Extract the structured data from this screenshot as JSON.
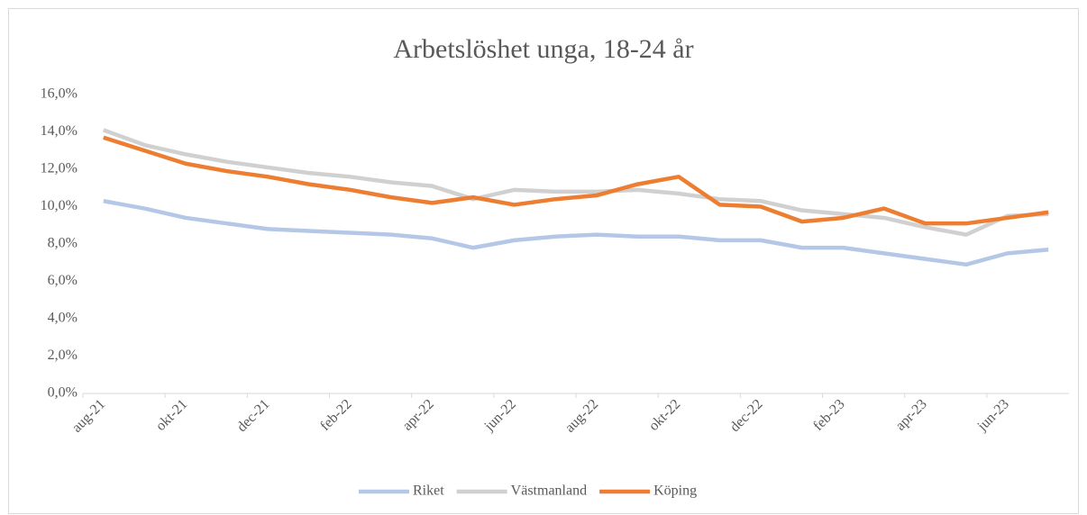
{
  "chart_data": {
    "type": "line",
    "title": "Arbetslöshet unga, 18-24 år",
    "categories": [
      "aug-21",
      null,
      "okt-21",
      null,
      "dec-21",
      null,
      "feb-22",
      null,
      "apr-22",
      null,
      "jun-22",
      null,
      "aug-22",
      null,
      "okt-22",
      null,
      "dec-22",
      null,
      "feb-23",
      null,
      "apr-23",
      null,
      "jun-23",
      null
    ],
    "series": [
      {
        "name": "Riket",
        "color": "#b4c7e7",
        "values": [
          10.3,
          9.9,
          9.4,
          9.1,
          8.8,
          8.7,
          8.6,
          8.5,
          8.3,
          7.8,
          8.2,
          8.4,
          8.5,
          8.4,
          8.4,
          8.2,
          8.2,
          7.8,
          7.8,
          7.5,
          7.2,
          6.9,
          7.5,
          7.7
        ]
      },
      {
        "name": "Västmanland",
        "color": "#d0d0d0",
        "values": [
          14.1,
          13.3,
          12.8,
          12.4,
          12.1,
          11.8,
          11.6,
          11.3,
          11.1,
          10.4,
          10.9,
          10.8,
          10.8,
          10.9,
          10.7,
          10.4,
          10.3,
          9.8,
          9.6,
          9.4,
          8.9,
          8.5,
          9.5,
          9.6
        ]
      },
      {
        "name": "Köping",
        "color": "#ed7d31",
        "values": [
          13.7,
          13.0,
          12.3,
          11.9,
          11.6,
          11.2,
          10.9,
          10.5,
          10.2,
          10.5,
          10.1,
          10.4,
          10.6,
          11.2,
          11.6,
          10.1,
          10.0,
          9.2,
          9.4,
          9.9,
          9.1,
          9.1,
          9.4,
          9.7
        ]
      }
    ],
    "ylim": [
      0,
      16
    ],
    "yticks": [
      {
        "value": 0,
        "label": "0,0%"
      },
      {
        "value": 2,
        "label": "2,0%"
      },
      {
        "value": 4,
        "label": "4,0%"
      },
      {
        "value": 6,
        "label": "6,0%"
      },
      {
        "value": 8,
        "label": "8,0%"
      },
      {
        "value": 10,
        "label": "10,0%"
      },
      {
        "value": 12,
        "label": "12,0%"
      },
      {
        "value": 14,
        "label": "14,0%"
      },
      {
        "value": 16,
        "label": "16,0%"
      }
    ],
    "grid": false,
    "legend": "bottom"
  }
}
